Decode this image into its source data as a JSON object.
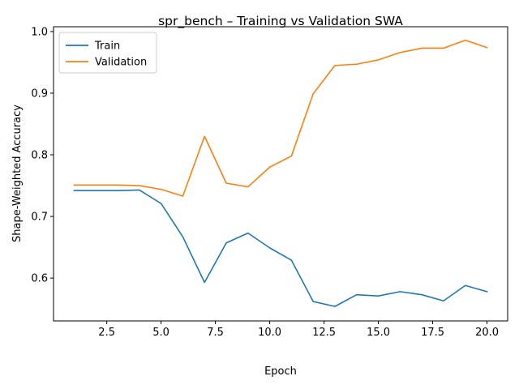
{
  "chart_data": {
    "type": "line",
    "title": "spr_bench – Training vs Validation SWA",
    "xlabel": "Epoch",
    "ylabel": "Shape-Weighted Accuracy",
    "x": [
      1,
      2,
      3,
      4,
      5,
      6,
      7,
      8,
      9,
      10,
      11,
      12,
      13,
      14,
      15,
      16,
      17,
      18,
      19,
      20
    ],
    "xlim": [
      0.05,
      20.95
    ],
    "ylim": [
      0.5305,
      1.0078
    ],
    "xticks": [
      2.5,
      5.0,
      7.5,
      10.0,
      12.5,
      15.0,
      17.5,
      20.0
    ],
    "xtick_labels": [
      "2.5",
      "5.0",
      "7.5",
      "10.0",
      "12.5",
      "15.0",
      "17.5",
      "20.0"
    ],
    "yticks": [
      0.6,
      0.7,
      0.8,
      0.9,
      1.0
    ],
    "ytick_labels": [
      "0.6",
      "0.7",
      "0.8",
      "0.9",
      "1.0"
    ],
    "grid": false,
    "legend_position": "top-left",
    "series": [
      {
        "name": "Train",
        "color": "#1f77b4",
        "values": [
          0.742,
          0.742,
          0.742,
          0.743,
          0.721,
          0.667,
          0.593,
          0.657,
          0.673,
          0.649,
          0.629,
          0.562,
          0.554,
          0.573,
          0.571,
          0.578,
          0.573,
          0.563,
          0.588,
          0.578
        ]
      },
      {
        "name": "Validation",
        "color": "#ff7f0e",
        "values": [
          0.751,
          0.751,
          0.751,
          0.75,
          0.744,
          0.733,
          0.83,
          0.754,
          0.748,
          0.78,
          0.798,
          0.899,
          0.945,
          0.947,
          0.954,
          0.966,
          0.973,
          0.973,
          0.986,
          0.974
        ]
      }
    ]
  }
}
